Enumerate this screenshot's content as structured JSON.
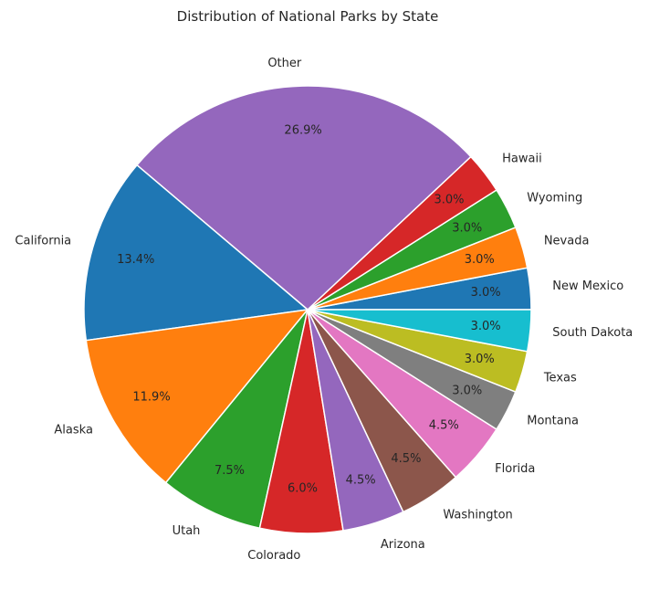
{
  "chart_data": {
    "type": "pie",
    "title": "Distribution of National Parks by State",
    "start_angle_deg": 0,
    "direction": "counterclockwise",
    "slices": [
      {
        "label": "New Mexico",
        "value": 3.0,
        "pct_label": "3.0%",
        "color": "#1f77b4"
      },
      {
        "label": "Nevada",
        "value": 3.0,
        "pct_label": "3.0%",
        "color": "#ff7f0e"
      },
      {
        "label": "Wyoming",
        "value": 3.0,
        "pct_label": "3.0%",
        "color": "#2ca02c"
      },
      {
        "label": "Hawaii",
        "value": 3.0,
        "pct_label": "3.0%",
        "color": "#d62728"
      },
      {
        "label": "Other",
        "value": 26.9,
        "pct_label": "26.9%",
        "color": "#9467bd"
      },
      {
        "label": "California",
        "value": 13.4,
        "pct_label": "13.4%",
        "color": "#1f77b4"
      },
      {
        "label": "Alaska",
        "value": 11.9,
        "pct_label": "11.9%",
        "color": "#ff7f0e"
      },
      {
        "label": "Utah",
        "value": 7.5,
        "pct_label": "7.5%",
        "color": "#2ca02c"
      },
      {
        "label": "Colorado",
        "value": 6.0,
        "pct_label": "6.0%",
        "color": "#d62728"
      },
      {
        "label": "Arizona",
        "value": 4.5,
        "pct_label": "4.5%",
        "color": "#9467bd"
      },
      {
        "label": "Washington",
        "value": 4.5,
        "pct_label": "4.5%",
        "color": "#8c564b"
      },
      {
        "label": "Florida",
        "value": 4.5,
        "pct_label": "4.5%",
        "color": "#e377c2"
      },
      {
        "label": "Montana",
        "value": 3.0,
        "pct_label": "3.0%",
        "color": "#7f7f7f"
      },
      {
        "label": "Texas",
        "value": 3.0,
        "pct_label": "3.0%",
        "color": "#bcbd22"
      },
      {
        "label": "South Dakota",
        "value": 3.0,
        "pct_label": "3.0%",
        "color": "#17becf"
      }
    ]
  }
}
